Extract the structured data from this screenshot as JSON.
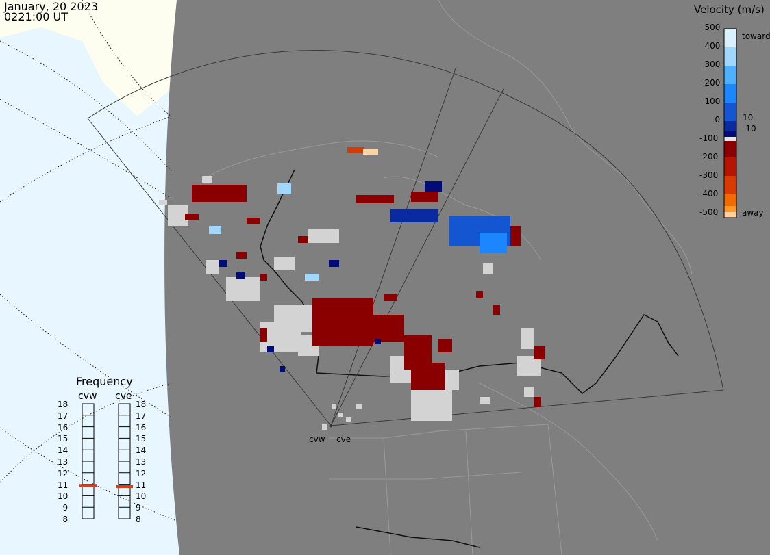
{
  "header": {
    "date": "January, 20 2023",
    "time": "0221:00 UT"
  },
  "velocity_scale": {
    "title": "Velocity (m/s)",
    "ticks": [
      "500",
      "400",
      "300",
      "200",
      "100",
      "0",
      "-100",
      "-200",
      "-300",
      "-400",
      "-500"
    ],
    "inner_ticks": [
      "10",
      "-10"
    ],
    "toward_label": "toward",
    "away_label": "away",
    "colors": [
      "#d9f0ff",
      "#9fd7ff",
      "#4fb0ff",
      "#1c86ff",
      "#1456d2",
      "#0a2aa0",
      "#000c7a",
      "#e6e6e6",
      "#8a0000",
      "#b51500",
      "#d93a00",
      "#f26a00",
      "#ff9a2a",
      "#ffd2a0"
    ]
  },
  "frequency": {
    "title": "Frequency",
    "radars": [
      {
        "label": "cvw",
        "value_mhz": 10.9
      },
      {
        "label": "cve",
        "value_mhz": 10.8
      }
    ],
    "scale_labels": [
      "18",
      "17",
      "16",
      "15",
      "14",
      "13",
      "12",
      "11",
      "10",
      "9",
      "8"
    ]
  },
  "map": {
    "radar_labels": [
      "cvw",
      "cve"
    ],
    "colors": {
      "background": "#7f7f7f",
      "sea": "#e8f6ff",
      "land_light": "#fdfdf0",
      "ground_scatter": "#d3d3d3"
    }
  }
}
